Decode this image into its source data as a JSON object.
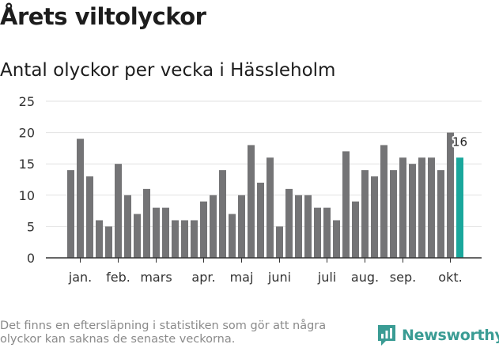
{
  "header": {
    "title": "Årets viltolyckor",
    "subtitle": "Antal olyckor per vecka i Hässleholm"
  },
  "footer": {
    "note": "Det finns en eftersläpning i statistiken som gör att några olyckor kan saknas de senaste veckorna.",
    "brand": "Newsworthy"
  },
  "colors": {
    "bar": "#747476",
    "highlight": "#1aa79c",
    "brand": "#3a9c94",
    "grid": "#e2e2e2",
    "axis": "#333333"
  },
  "chart_data": {
    "type": "bar",
    "title": "Antal olyckor per vecka i Hässleholm",
    "xlabel": "",
    "ylabel": "",
    "ylim": [
      0,
      25
    ],
    "yticks": [
      0,
      5,
      10,
      15,
      20,
      25
    ],
    "grid": true,
    "month_labels": [
      {
        "label": "jan.",
        "week": 2
      },
      {
        "label": "feb.",
        "week": 6
      },
      {
        "label": "mars",
        "week": 10
      },
      {
        "label": "apr.",
        "week": 15
      },
      {
        "label": "maj",
        "week": 19
      },
      {
        "label": "juni",
        "week": 23
      },
      {
        "label": "juli",
        "week": 28
      },
      {
        "label": "aug.",
        "week": 32
      },
      {
        "label": "sep.",
        "week": 36
      },
      {
        "label": "okt.",
        "week": 41
      }
    ],
    "weeks": [
      1,
      2,
      3,
      4,
      5,
      6,
      7,
      8,
      9,
      10,
      11,
      12,
      13,
      14,
      15,
      16,
      17,
      18,
      19,
      20,
      21,
      22,
      23,
      24,
      25,
      26,
      27,
      28,
      29,
      30,
      31,
      32,
      33,
      34,
      35,
      36,
      37,
      38,
      39,
      40,
      41,
      42
    ],
    "values": [
      14,
      19,
      13,
      6,
      5,
      15,
      10,
      7,
      11,
      8,
      8,
      6,
      6,
      6,
      9,
      10,
      14,
      7,
      10,
      18,
      12,
      16,
      5,
      11,
      10,
      10,
      8,
      8,
      6,
      17,
      9,
      14,
      13,
      18,
      14,
      16,
      15,
      16,
      16,
      14,
      20,
      16
    ],
    "highlight": {
      "week": 42,
      "label": "16"
    }
  }
}
